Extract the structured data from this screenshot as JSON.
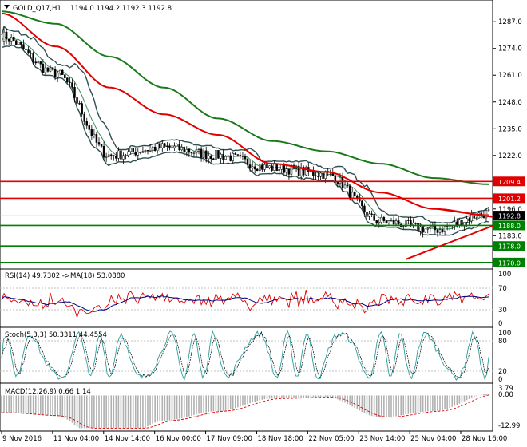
{
  "window": {
    "title": "GOLD_Q17,H1",
    "ohlc": "1194.0 1194.2 1192.3 1192.8",
    "current_price": "1192.8",
    "menu_arrow": "triangle-down-icon"
  },
  "colors": {
    "background": "#ffffff",
    "candles": "#000000",
    "ma_red": "#e00000",
    "ma_green": "#1a7a1a",
    "bollinger": "#2f4f4f",
    "support_green": "#008000",
    "resistance_red": "#e00000",
    "current_price_bg": "#000000"
  },
  "price_panel": {
    "y_ticks": [
      "1287.0",
      "1274.0",
      "1261.0",
      "1248.0",
      "1235.0",
      "1222.0",
      "1196.0",
      "1183.0"
    ],
    "level_lines": [
      {
        "label": "1209.4",
        "value": 1209.4,
        "color": "red"
      },
      {
        "label": "1201.2",
        "value": 1201.2,
        "color": "red"
      },
      {
        "label": "1188.0",
        "value": 1188.0,
        "color": "green"
      },
      {
        "label": "1178.0",
        "value": 1178.0,
        "color": "green"
      },
      {
        "label": "1170.0",
        "value": 1170.0,
        "color": "green"
      }
    ]
  },
  "rsi_panel": {
    "header": "RSI(14) 49.7302 ->MA(18) 53.0880",
    "y_ticks": [
      "100",
      "70",
      "30",
      "0"
    ]
  },
  "stoch_panel": {
    "header": "Stoch(5,3,3) 50.3311 44.4554",
    "y_ticks": [
      "100",
      "80",
      "20",
      "0"
    ]
  },
  "macd_panel": {
    "header": "MACD(12,26,9) 0.66 1.14",
    "y_ticks": [
      "3.79",
      "0.00",
      "-12.99"
    ]
  },
  "x_axis": {
    "labels": [
      "9 Nov 2016",
      "11 Nov 04:00",
      "14 Nov 14:00",
      "16 Nov 00:00",
      "17 Nov 09:00",
      "18 Nov 18:00",
      "22 Nov 05:00",
      "23 Nov 14:00",
      "25 Nov 04:00",
      "28 Nov 16:00"
    ]
  },
  "chart_data": {
    "type": "line",
    "title": "GOLD_Q17,H1",
    "x": [
      "9 Nov 2016",
      "11 Nov 04:00",
      "14 Nov 14:00",
      "16 Nov 00:00",
      "17 Nov 09:00",
      "18 Nov 18:00",
      "22 Nov 05:00",
      "23 Nov 14:00",
      "25 Nov 04:00",
      "28 Nov 16:00"
    ],
    "ylim": [
      1168,
      1296
    ],
    "series": [
      {
        "values": [
          1280,
          1262,
          1222,
          1226,
          1222,
          1216,
          1213,
          1190,
          1186,
          1194
        ]
      },
      {
        "values": [
          1291,
          1275,
          1255,
          1242,
          1232,
          1218,
          1214,
          1204,
          1196,
          1193
        ]
      },
      {
        "values": [
          1292,
          1286,
          1270,
          1255,
          1240,
          1229,
          1224,
          1218,
          1211,
          1208
        ]
      }
    ]
  }
}
